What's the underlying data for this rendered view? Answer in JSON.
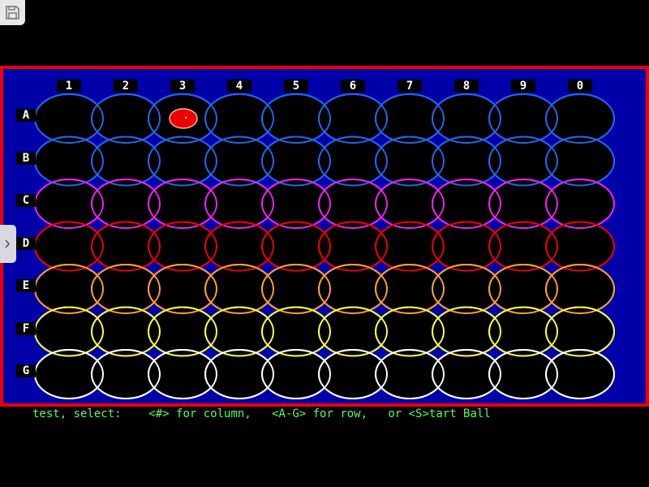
{
  "columns": [
    "1",
    "2",
    "3",
    "4",
    "5",
    "6",
    "7",
    "8",
    "9",
    "0"
  ],
  "rows": [
    {
      "label": "A",
      "color": "#2266ee"
    },
    {
      "label": "B",
      "color": "#2266ee"
    },
    {
      "label": "C",
      "color": "#ee22ee"
    },
    {
      "label": "D",
      "color": "#ee0000"
    },
    {
      "label": "E",
      "color": "#ffa030"
    },
    {
      "label": "F",
      "color": "#ffff44"
    },
    {
      "label": "G",
      "color": "#ffffff"
    }
  ],
  "ball": {
    "row": "A",
    "column": "3",
    "color": "#ee0000"
  },
  "colors": {
    "frame": "#ee0000",
    "background": "#0000a8",
    "text": "#55ff55"
  },
  "status": {
    "prompt": "test, select:",
    "column_hint": "<#> for column,",
    "row_hint": "<A-G> for row,",
    "start_hint": "or <S>tart Ball"
  },
  "icons": {
    "save": "floppy-disk-icon",
    "expand": "chevron-right-icon"
  }
}
